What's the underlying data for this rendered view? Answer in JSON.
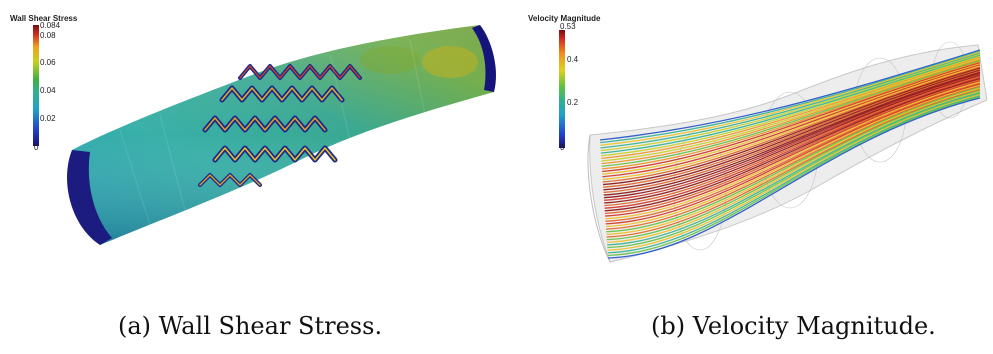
{
  "figures": [
    {
      "id": "a",
      "colorbar": {
        "title": "Wall Shear Stress",
        "ticks": [
          "0.084",
          "0.08",
          "0.06",
          "0.04",
          "0.02",
          "0"
        ]
      },
      "caption": "(a) Wall Shear Stress."
    },
    {
      "id": "b",
      "colorbar": {
        "title": "Velocity Magnitude",
        "ticks": [
          "0.53",
          "0.4",
          "0.2",
          "0"
        ]
      },
      "caption": "(b) Velocity Magnitude."
    }
  ]
}
